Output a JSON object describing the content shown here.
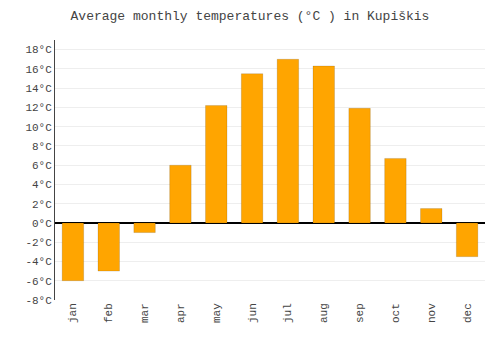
{
  "chart_data": {
    "type": "bar",
    "title": "Average monthly temperatures (°C ) in Kupiškis",
    "categories": [
      "jan",
      "feb",
      "mar",
      "apr",
      "may",
      "jun",
      "jul",
      "aug",
      "sep",
      "oct",
      "nov",
      "dec"
    ],
    "values": [
      -6.0,
      -5.0,
      -1.0,
      6.0,
      12.2,
      15.5,
      17.0,
      16.3,
      11.9,
      6.7,
      1.5,
      -3.5
    ],
    "color": "#FFA500",
    "ylim": [
      -8,
      19
    ],
    "yticks": [
      {
        "value": -8,
        "label": "-8°C"
      },
      {
        "value": -6,
        "label": "-6°C"
      },
      {
        "value": -4,
        "label": "-4°C"
      },
      {
        "value": -2,
        "label": "-2°C"
      },
      {
        "value": 0,
        "label": "0°C"
      },
      {
        "value": 2,
        "label": "2°C"
      },
      {
        "value": 4,
        "label": "4°C"
      },
      {
        "value": 6,
        "label": "6°C"
      },
      {
        "value": 8,
        "label": "8°C"
      },
      {
        "value": 10,
        "label": "10°C"
      },
      {
        "value": 12,
        "label": "12°C"
      },
      {
        "value": 14,
        "label": "14°C"
      },
      {
        "value": 16,
        "label": "16°C"
      },
      {
        "value": 18,
        "label": "18°C"
      }
    ],
    "grid": true
  }
}
